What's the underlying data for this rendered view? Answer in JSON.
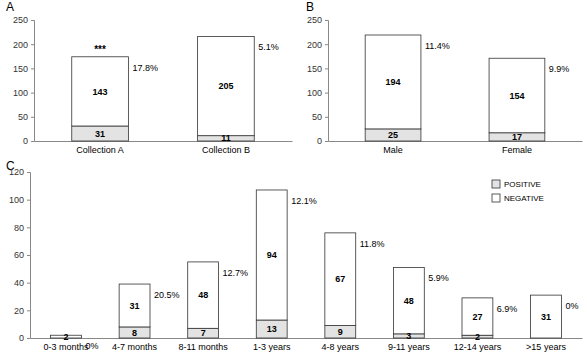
{
  "chart_data": [
    {
      "type": "bar",
      "title": "A",
      "stacked": true,
      "data_labels": true,
      "categories": [
        "Collection A",
        "Collection B"
      ],
      "series": [
        {
          "color": "#e3e3e3",
          "values": [
            31,
            11
          ]
        },
        {
          "color": "#ffffff",
          "values": [
            143,
            205
          ]
        }
      ],
      "percent_labels": [
        "17.8%",
        "5.1%"
      ],
      "annotations": [
        {
          "category": "Collection A",
          "text": "***"
        }
      ],
      "ylim": [
        0,
        250
      ],
      "yticks": [
        0,
        50,
        100,
        150,
        200,
        250
      ],
      "grid": false
    },
    {
      "type": "bar",
      "title": "B",
      "stacked": true,
      "data_labels": true,
      "categories": [
        "Male",
        "Female"
      ],
      "series": [
        {
          "color": "#e3e3e3",
          "values": [
            25,
            17
          ]
        },
        {
          "color": "#ffffff",
          "values": [
            194,
            154
          ]
        }
      ],
      "percent_labels": [
        "11.4%",
        "9.9%"
      ],
      "ylim": [
        0,
        250
      ],
      "yticks": [
        0,
        50,
        100,
        150,
        200,
        250
      ],
      "grid": false
    },
    {
      "type": "bar",
      "title": "C",
      "stacked": true,
      "data_labels": true,
      "legend": "top-right",
      "categories": [
        "0-3 months",
        "4-7 months",
        "8-11 months",
        "1-3 years",
        "4-8 years",
        "9-11 years",
        "12-14 years",
        ">15 years"
      ],
      "series": [
        {
          "name": "POSITIVE",
          "color": "#e3e3e3",
          "values": [
            0,
            8,
            7,
            13,
            9,
            3,
            2,
            0
          ],
          "value_labels": [
            null,
            "8",
            "7",
            "13",
            "9",
            "3",
            "2",
            null
          ]
        },
        {
          "name": "NEGATIVE",
          "color": "#ffffff",
          "values": [
            2,
            31,
            48,
            94,
            67,
            48,
            27,
            31
          ]
        }
      ],
      "percent_labels": [
        "0%",
        "20.5%",
        "12.7%",
        "12.1%",
        "11.8%",
        "5.9%",
        "6.9%",
        "0%"
      ],
      "ylim": [
        0,
        120
      ],
      "yticks": [
        0,
        20,
        40,
        60,
        80,
        100,
        120
      ],
      "grid": false
    }
  ]
}
